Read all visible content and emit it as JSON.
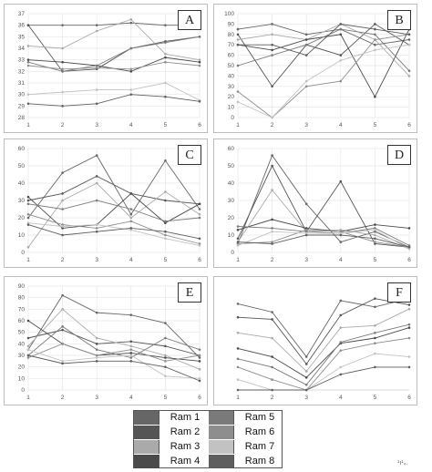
{
  "colors": {
    "ram1": "#666666",
    "ram2": "#555555",
    "ram3": "#aaaaaa",
    "ram4": "#4a4a4a",
    "ram5": "#7a7a7a",
    "ram6": "#8e8e8e",
    "ram7": "#c2c2c2",
    "ram8": "#5e5e5e",
    "grid": "#e6e6e6",
    "tick": "#555555"
  },
  "legend": {
    "items": [
      {
        "label": "Ram 1",
        "color": "#666666"
      },
      {
        "label": "Ram 2",
        "color": "#555555"
      },
      {
        "label": "Ram 3",
        "color": "#aaaaaa"
      },
      {
        "label": "Ram 4",
        "color": "#4a4a4a"
      },
      {
        "label": "Ram 5",
        "color": "#7a7a7a"
      },
      {
        "label": "Ram 6",
        "color": "#8e8e8e"
      },
      {
        "label": "Ram 7",
        "color": "#c2c2c2"
      },
      {
        "label": "Ram 8",
        "color": "#5e5e5e"
      }
    ]
  },
  "footnote": "¹ı¹₄.",
  "chart_data": [
    {
      "panel": "A",
      "type": "line",
      "x": [
        1,
        2,
        3,
        4,
        5,
        6
      ],
      "ylim": [
        28,
        37
      ],
      "yticks": [
        28,
        29,
        30,
        31,
        32,
        33,
        34,
        35,
        36,
        37
      ],
      "grid": true,
      "series": [
        {
          "values": [
            36.0,
            36.0,
            36.0,
            36.2,
            36.0,
            36.0
          ]
        },
        {
          "values": [
            36.0,
            32.0,
            32.2,
            34.0,
            34.6,
            35.0
          ]
        },
        {
          "values": [
            34.2,
            34.0,
            35.5,
            36.5,
            33.5,
            33.0
          ]
        },
        {
          "values": [
            33.0,
            32.8,
            32.5,
            32.0,
            33.2,
            32.8
          ]
        },
        {
          "values": [
            32.8,
            32.0,
            32.5,
            34.0,
            34.5,
            35.0
          ]
        },
        {
          "values": [
            32.5,
            32.2,
            32.3,
            32.2,
            32.8,
            32.5
          ]
        },
        {
          "values": [
            30.0,
            30.2,
            30.4,
            30.4,
            31.0,
            29.5
          ]
        },
        {
          "values": [
            29.2,
            29.0,
            29.2,
            30.0,
            29.8,
            29.4
          ]
        }
      ]
    },
    {
      "panel": "B",
      "type": "line",
      "x": [
        1,
        2,
        3,
        4,
        5,
        6
      ],
      "ylim": [
        0,
        100
      ],
      "yticks": [
        0,
        10,
        20,
        30,
        40,
        50,
        60,
        70,
        80,
        90,
        100
      ],
      "grid": true,
      "series": [
        {
          "values": [
            85,
            90,
            80,
            85,
            70,
            75
          ]
        },
        {
          "values": [
            80,
            30,
            70,
            60,
            90,
            70
          ]
        },
        {
          "values": [
            75,
            80,
            75,
            90,
            75,
            40
          ]
        },
        {
          "values": [
            70,
            65,
            75,
            80,
            20,
            85
          ]
        },
        {
          "values": [
            50,
            60,
            70,
            85,
            80,
            45
          ]
        },
        {
          "values": [
            25,
            0,
            30,
            35,
            75,
            80
          ]
        },
        {
          "values": [
            15,
            0,
            35,
            55,
            65,
            70
          ]
        },
        {
          "values": [
            70,
            70,
            60,
            90,
            85,
            80
          ]
        }
      ]
    },
    {
      "panel": "C",
      "type": "line",
      "x": [
        1,
        2,
        3,
        4,
        5,
        6
      ],
      "ylim": [
        0,
        60
      ],
      "yticks": [
        0,
        10,
        20,
        30,
        40,
        50,
        60
      ],
      "grid": true,
      "series": [
        {
          "values": [
            20,
            46,
            56,
            22,
            53,
            25
          ]
        },
        {
          "values": [
            30,
            34,
            44,
            34,
            30,
            28
          ]
        },
        {
          "values": [
            3,
            30,
            40,
            20,
            35,
            22
          ]
        },
        {
          "values": [
            32,
            14,
            16,
            34,
            17,
            28
          ]
        },
        {
          "values": [
            28,
            25,
            30,
            25,
            18,
            20
          ]
        },
        {
          "values": [
            22,
            16,
            14,
            18,
            10,
            5
          ]
        },
        {
          "values": [
            17,
            15,
            16,
            13,
            8,
            4
          ]
        },
        {
          "values": [
            16,
            10,
            12,
            14,
            12,
            8
          ]
        }
      ]
    },
    {
      "panel": "D",
      "type": "line",
      "x": [
        1,
        2,
        3,
        4,
        5,
        6
      ],
      "ylim": [
        0,
        60
      ],
      "yticks": [
        0,
        10,
        20,
        30,
        40,
        50,
        60
      ],
      "grid": true,
      "series": [
        {
          "values": [
            5,
            56,
            28,
            6,
            12,
            3
          ]
        },
        {
          "values": [
            8,
            50,
            12,
            41,
            5,
            3
          ]
        },
        {
          "values": [
            6,
            36,
            12,
            13,
            10,
            2
          ]
        },
        {
          "values": [
            13,
            19,
            14,
            12,
            16,
            14
          ]
        },
        {
          "values": [
            15,
            14,
            12,
            11,
            14,
            4
          ]
        },
        {
          "values": [
            5,
            6,
            13,
            12,
            6,
            3
          ]
        },
        {
          "values": [
            4,
            12,
            11,
            11,
            13,
            2
          ]
        },
        {
          "values": [
            6,
            5,
            10,
            10,
            8,
            3
          ]
        }
      ]
    },
    {
      "panel": "E",
      "type": "line",
      "x": [
        1,
        2,
        3,
        4,
        5,
        6
      ],
      "ylim": [
        0,
        90
      ],
      "yticks": [
        0,
        10,
        20,
        30,
        40,
        50,
        60,
        70,
        80,
        90
      ],
      "grid": true,
      "series": [
        {
          "values": [
            35,
            82,
            67,
            65,
            58,
            28
          ]
        },
        {
          "values": [
            45,
            52,
            40,
            42,
            38,
            30
          ]
        },
        {
          "values": [
            38,
            70,
            45,
            38,
            30,
            18
          ]
        },
        {
          "values": [
            60,
            40,
            30,
            32,
            28,
            25
          ]
        },
        {
          "values": [
            30,
            55,
            35,
            28,
            45,
            35
          ]
        },
        {
          "values": [
            28,
            40,
            30,
            35,
            25,
            30
          ]
        },
        {
          "values": [
            35,
            25,
            28,
            30,
            12,
            10
          ]
        },
        {
          "values": [
            30,
            23,
            25,
            25,
            20,
            8
          ]
        }
      ]
    },
    {
      "panel": "F",
      "type": "line",
      "x": [
        1,
        2,
        3,
        4,
        5,
        6
      ],
      "ylim": [
        0,
        10
      ],
      "yticks": [],
      "grid": false,
      "series": [
        {
          "values": [
            8.3,
            7.5,
            3.2,
            8.6,
            8.0,
            8.8
          ]
        },
        {
          "values": [
            7.0,
            6.8,
            2.5,
            7.2,
            8.8,
            8.2
          ]
        },
        {
          "values": [
            5.5,
            5.0,
            1.8,
            6.0,
            6.2,
            7.8
          ]
        },
        {
          "values": [
            4.0,
            3.2,
            1.2,
            4.5,
            5.0,
            6.0
          ]
        },
        {
          "values": [
            3.0,
            2.2,
            0.5,
            4.6,
            5.5,
            6.3
          ]
        },
        {
          "values": [
            2.2,
            1.0,
            0.0,
            3.8,
            4.5,
            5.0
          ]
        },
        {
          "values": [
            1.0,
            0.0,
            0.0,
            2.2,
            3.5,
            3.2
          ]
        },
        {
          "values": [
            0.0,
            0.0,
            0.0,
            1.5,
            2.2,
            2.2
          ]
        }
      ]
    }
  ]
}
